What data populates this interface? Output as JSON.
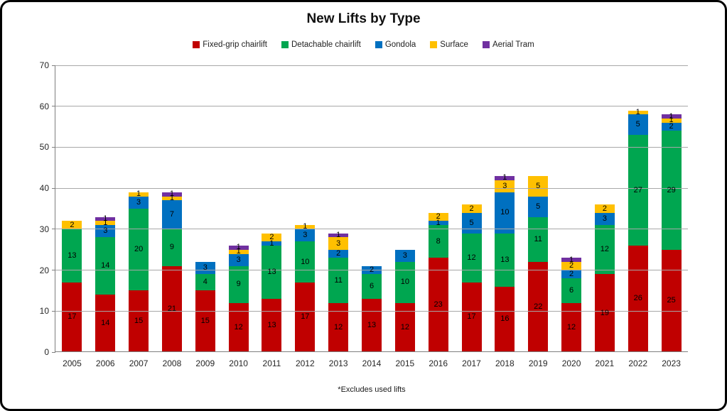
{
  "title": "New Lifts by Type",
  "footnote": "*Excludes used lifts",
  "chart_data": {
    "type": "bar",
    "stacked": true,
    "title": "New Lifts by Type",
    "xlabel": "",
    "ylabel": "",
    "ylim": [
      0,
      70
    ],
    "yticks": [
      0,
      10,
      20,
      30,
      40,
      50,
      60,
      70
    ],
    "grid": true,
    "gridlines_over_bars": true,
    "legend_position": "top",
    "data_labels": true,
    "categories": [
      "2005",
      "2006",
      "2007",
      "2008",
      "2009",
      "2010",
      "2011",
      "2012",
      "2013",
      "2014",
      "2015",
      "2016",
      "2017",
      "2018",
      "2019",
      "2020",
      "2021",
      "2022",
      "2023"
    ],
    "series": [
      {
        "name": "Fixed-grip chairlift",
        "color": "#C00000",
        "values": [
          17,
          14,
          15,
          21,
          15,
          12,
          13,
          17,
          12,
          13,
          12,
          23,
          17,
          16,
          22,
          12,
          19,
          26,
          25
        ]
      },
      {
        "name": "Detachable chairlift",
        "color": "#00A650",
        "values": [
          13,
          14,
          20,
          9,
          4,
          9,
          13,
          10,
          11,
          6,
          10,
          8,
          12,
          13,
          11,
          6,
          12,
          27,
          29
        ]
      },
      {
        "name": "Gondola",
        "color": "#0070C0",
        "values": [
          0,
          3,
          3,
          7,
          3,
          3,
          1,
          3,
          2,
          2,
          3,
          1,
          5,
          10,
          5,
          2,
          3,
          5,
          2
        ]
      },
      {
        "name": "Surface",
        "color": "#FFC000",
        "values": [
          2,
          1,
          1,
          1,
          0,
          1,
          2,
          1,
          3,
          0,
          0,
          2,
          2,
          3,
          5,
          2,
          2,
          1,
          1
        ]
      },
      {
        "name": "Aerial Tram",
        "color": "#7030A0",
        "values": [
          0,
          1,
          0,
          1,
          0,
          1,
          0,
          0,
          1,
          0,
          0,
          0,
          0,
          1,
          0,
          1,
          0,
          0,
          1
        ]
      }
    ],
    "totals": [
      32,
      33,
      39,
      39,
      22,
      26,
      29,
      31,
      29,
      21,
      25,
      34,
      36,
      43,
      43,
      23,
      36,
      59,
      58
    ]
  }
}
